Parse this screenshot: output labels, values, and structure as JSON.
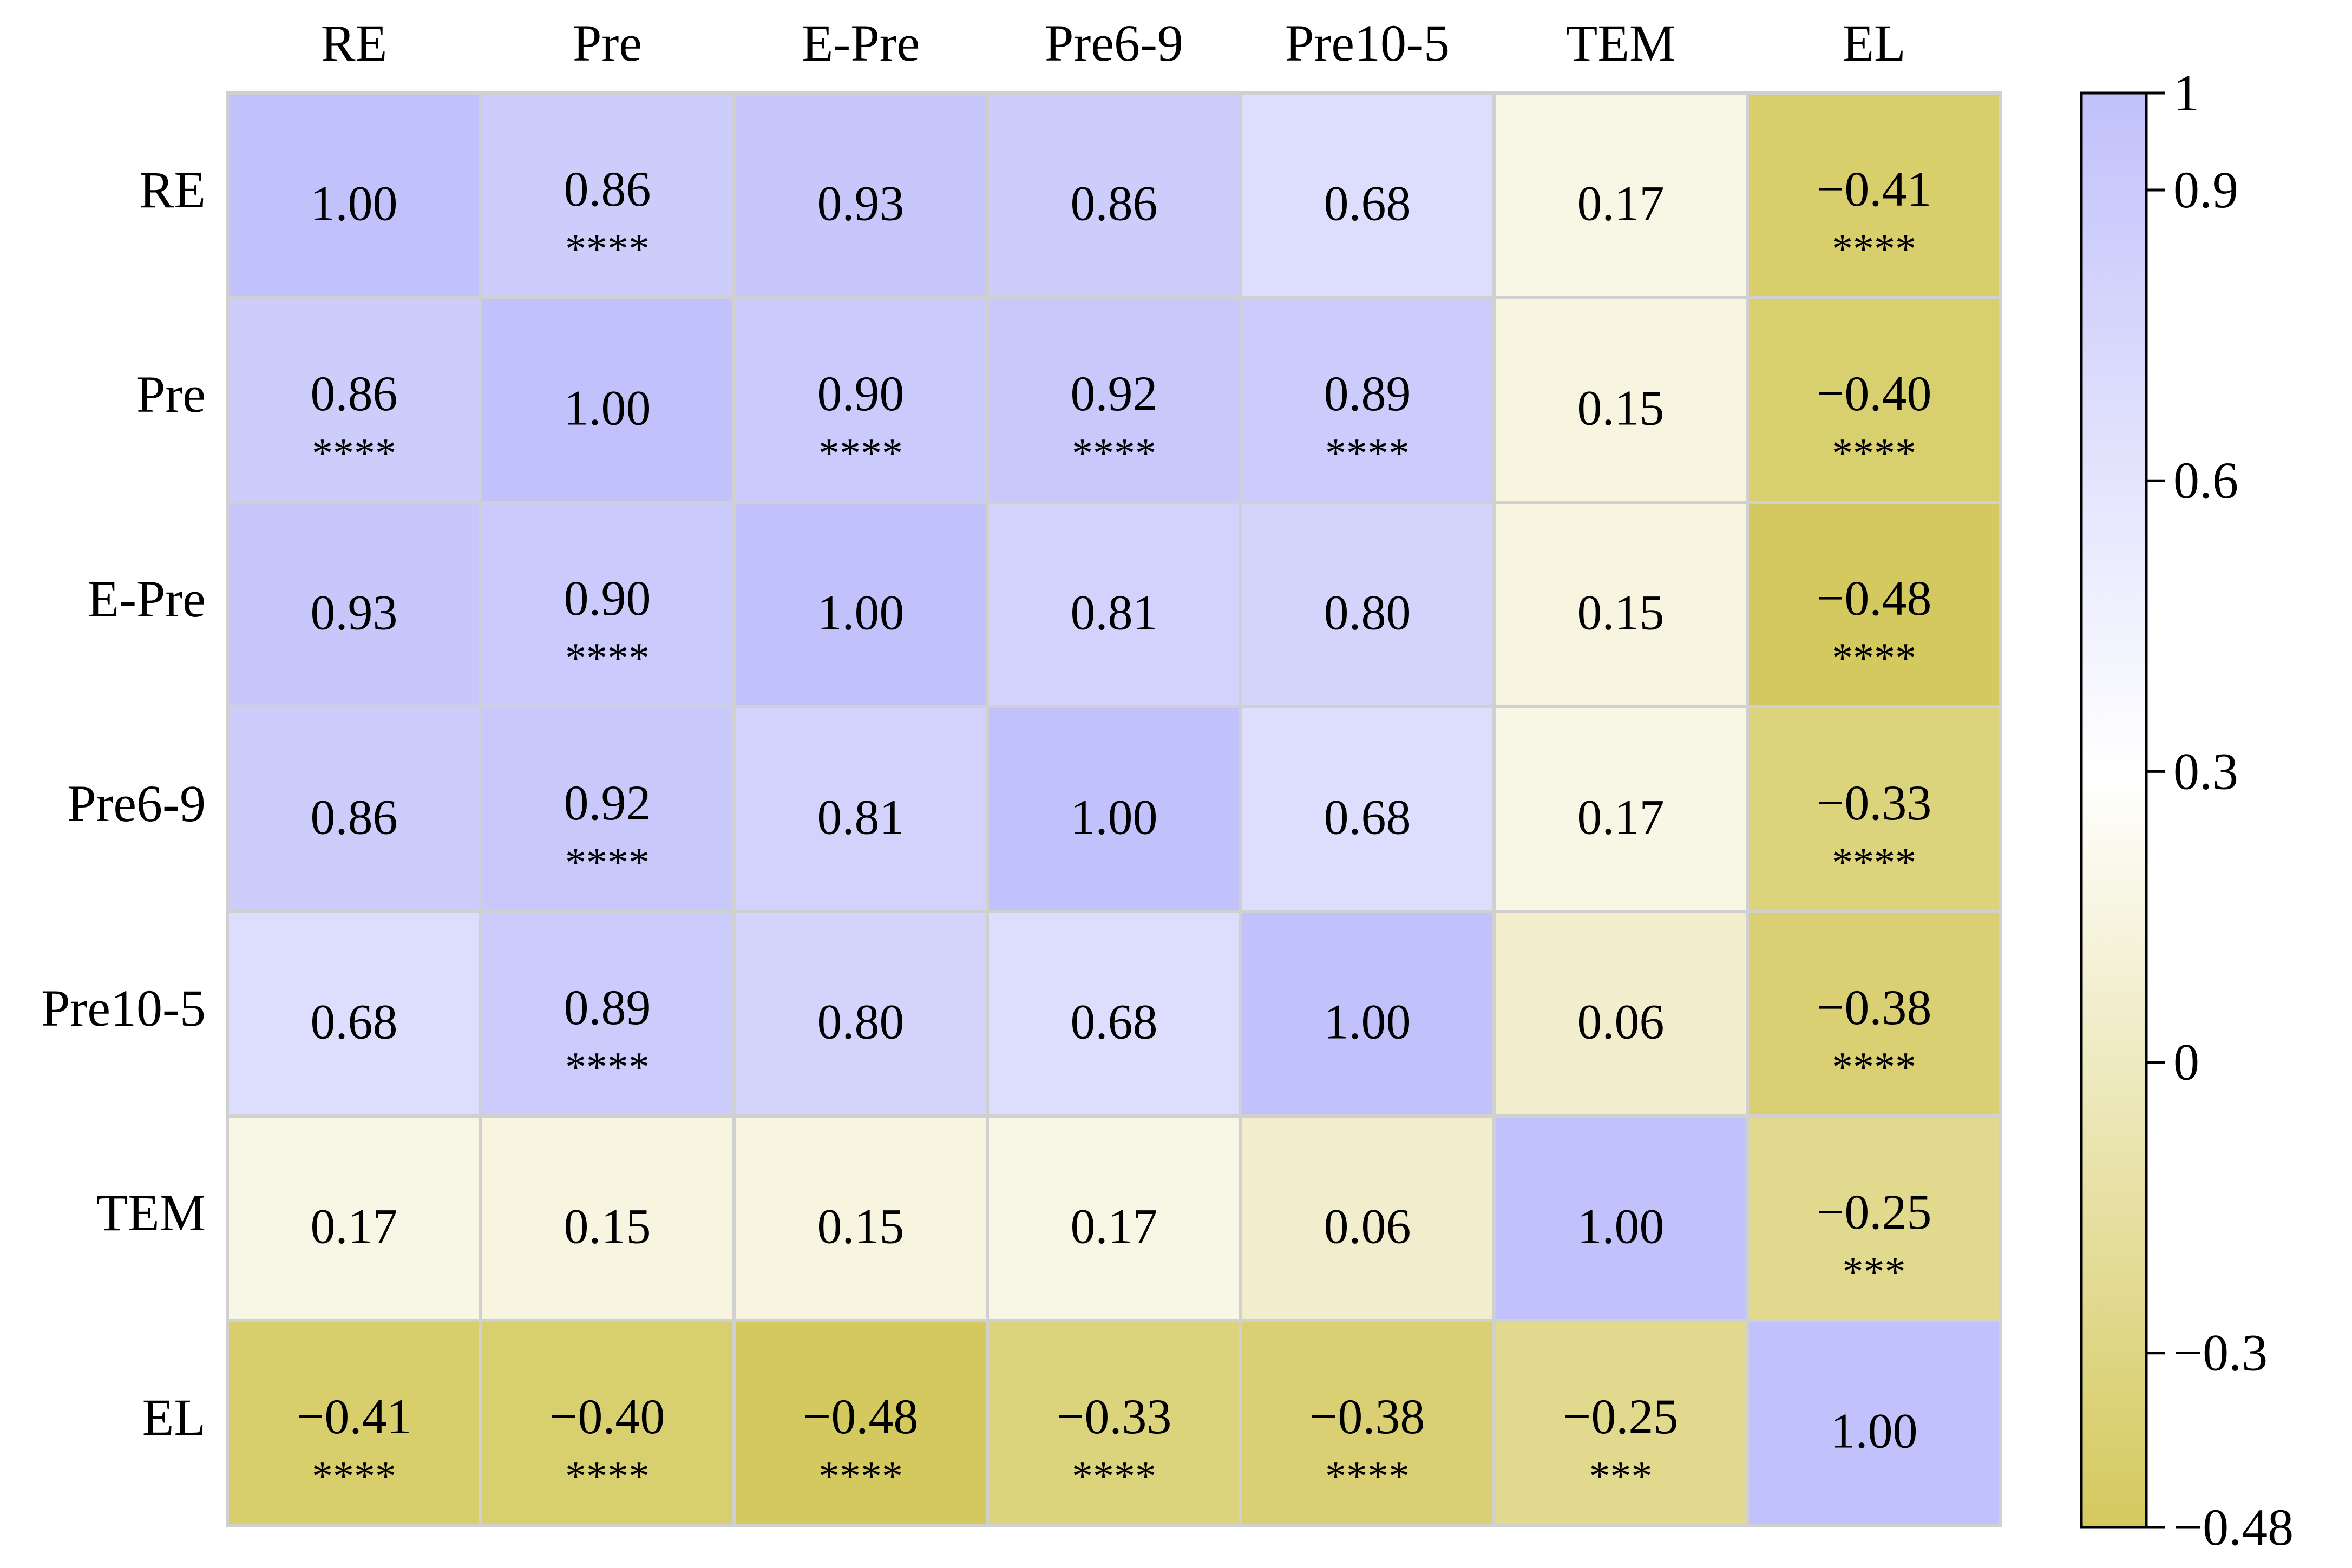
{
  "chart_data": {
    "type": "heatmap",
    "title": "",
    "xlabel": "",
    "ylabel": "",
    "columns": [
      "RE",
      "Pre",
      "E-Pre",
      "Pre6-9",
      "Pre10-5",
      "TEM",
      "EL"
    ],
    "rows": [
      "RE",
      "Pre",
      "E-Pre",
      "Pre6-9",
      "Pre10-5",
      "TEM",
      "EL"
    ],
    "values": [
      [
        1.0,
        0.86,
        0.93,
        0.86,
        0.68,
        0.17,
        -0.41
      ],
      [
        0.86,
        1.0,
        0.9,
        0.92,
        0.89,
        0.15,
        -0.4
      ],
      [
        0.93,
        0.9,
        1.0,
        0.81,
        0.8,
        0.15,
        -0.48
      ],
      [
        0.86,
        0.92,
        0.81,
        1.0,
        0.68,
        0.17,
        -0.33
      ],
      [
        0.68,
        0.89,
        0.8,
        0.68,
        1.0,
        0.06,
        -0.38
      ],
      [
        0.17,
        0.15,
        0.15,
        0.17,
        0.06,
        1.0,
        -0.25
      ],
      [
        -0.41,
        -0.4,
        -0.48,
        -0.33,
        -0.38,
        -0.25,
        1.0
      ]
    ],
    "value_labels": [
      [
        "1.00",
        "0.86",
        "0.93",
        "0.86",
        "0.68",
        "0.17",
        "−0.41"
      ],
      [
        "0.86",
        "1.00",
        "0.90",
        "0.92",
        "0.89",
        "0.15",
        "−0.40"
      ],
      [
        "0.93",
        "0.90",
        "1.00",
        "0.81",
        "0.80",
        "0.15",
        "−0.48"
      ],
      [
        "0.86",
        "0.92",
        "0.81",
        "1.00",
        "0.68",
        "0.17",
        "−0.33"
      ],
      [
        "0.68",
        "0.89",
        "0.80",
        "0.68",
        "1.00",
        "0.06",
        "−0.38"
      ],
      [
        "0.17",
        "0.15",
        "0.15",
        "0.17",
        "0.06",
        "1.00",
        "−0.25"
      ],
      [
        "−0.41",
        "−0.40",
        "−0.48",
        "−0.33",
        "−0.38",
        "−0.25",
        "1.00"
      ]
    ],
    "significance": [
      [
        "",
        "****",
        "",
        "",
        "",
        "",
        "****"
      ],
      [
        "****",
        "",
        "****",
        "****",
        "****",
        "",
        "****"
      ],
      [
        "",
        "****",
        "",
        "",
        "",
        "",
        "****"
      ],
      [
        "",
        "****",
        "",
        "",
        "",
        "",
        "****"
      ],
      [
        "",
        "****",
        "",
        "",
        "",
        "",
        "****"
      ],
      [
        "",
        "",
        "",
        "",
        "",
        "",
        "***"
      ],
      [
        "****",
        "****",
        "****",
        "****",
        "****",
        "***",
        ""
      ]
    ],
    "colorbar": {
      "range": [
        -0.48,
        1
      ],
      "ticks": [
        1,
        0.9,
        0.6,
        0.3,
        0,
        -0.3,
        -0.48
      ],
      "tick_labels": [
        "1",
        "0.9",
        "0.6",
        "0.3",
        "0",
        "−0.3",
        "−0.48"
      ],
      "colors": {
        "min": "#D4C95E",
        "mid": "#FFFFFF",
        "max": "#C1C1FB"
      },
      "midpoint": 0.3,
      "placement": "right"
    },
    "grid": true,
    "grid_color": "#D0D0D0"
  }
}
